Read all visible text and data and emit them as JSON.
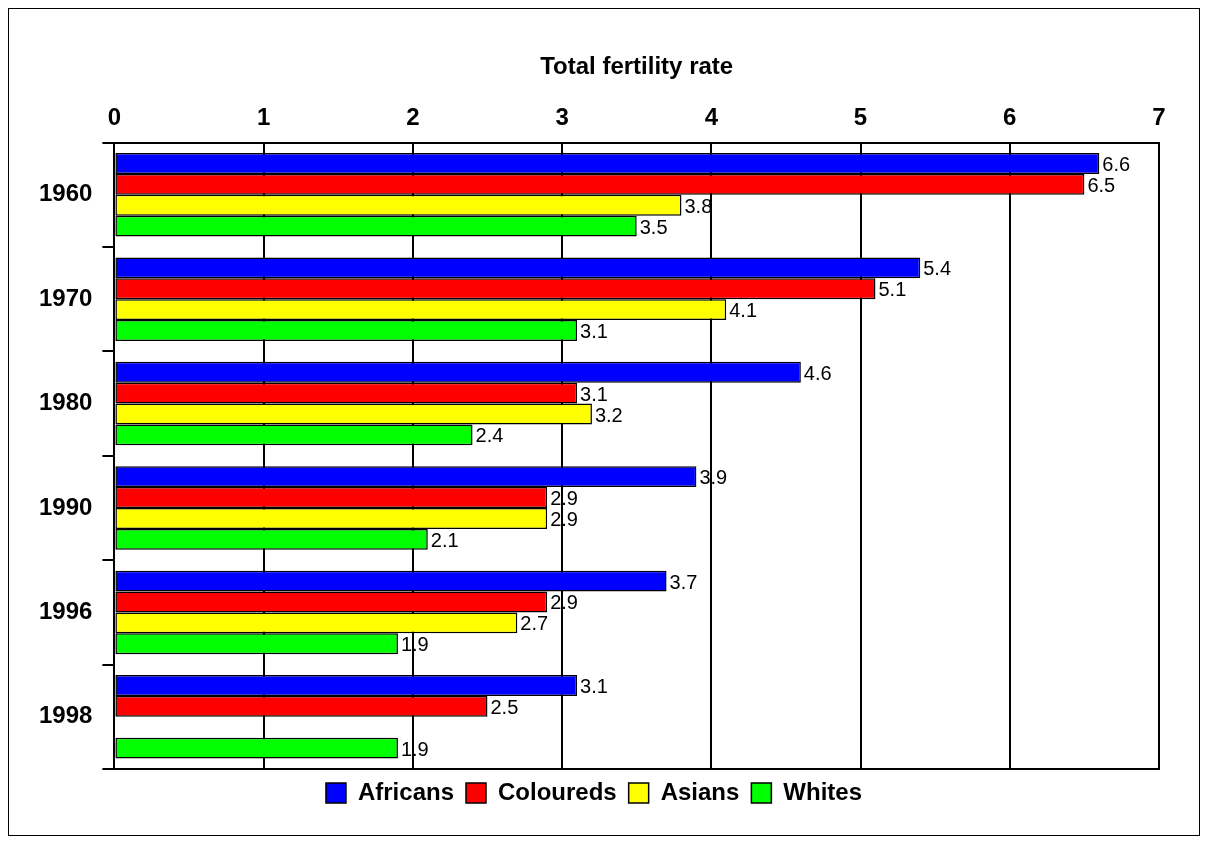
{
  "chart_data": {
    "type": "bar",
    "orientation": "horizontal",
    "xlabel": "Total fertility rate",
    "categories": [
      "1960",
      "1970",
      "1980",
      "1990",
      "1996",
      "1998"
    ],
    "series": [
      {
        "name": "Africans",
        "color": "#0000ff",
        "values": [
          6.6,
          5.4,
          4.6,
          3.9,
          3.7,
          3.1
        ]
      },
      {
        "name": "Coloureds",
        "color": "#ff0000",
        "values": [
          6.5,
          5.1,
          3.1,
          2.9,
          2.9,
          2.5
        ]
      },
      {
        "name": "Asians",
        "color": "#ffff00",
        "values": [
          3.8,
          4.1,
          3.2,
          2.9,
          2.7,
          null
        ]
      },
      {
        "name": "Whites",
        "color": "#00ff00",
        "values": [
          3.5,
          3.1,
          2.4,
          2.1,
          1.9,
          1.9
        ]
      }
    ],
    "xlim": [
      0,
      7
    ],
    "xticks": [
      0,
      1,
      2,
      3,
      4,
      5,
      6,
      7
    ],
    "grid": "x",
    "legend": "bottom",
    "data_labels": true
  }
}
